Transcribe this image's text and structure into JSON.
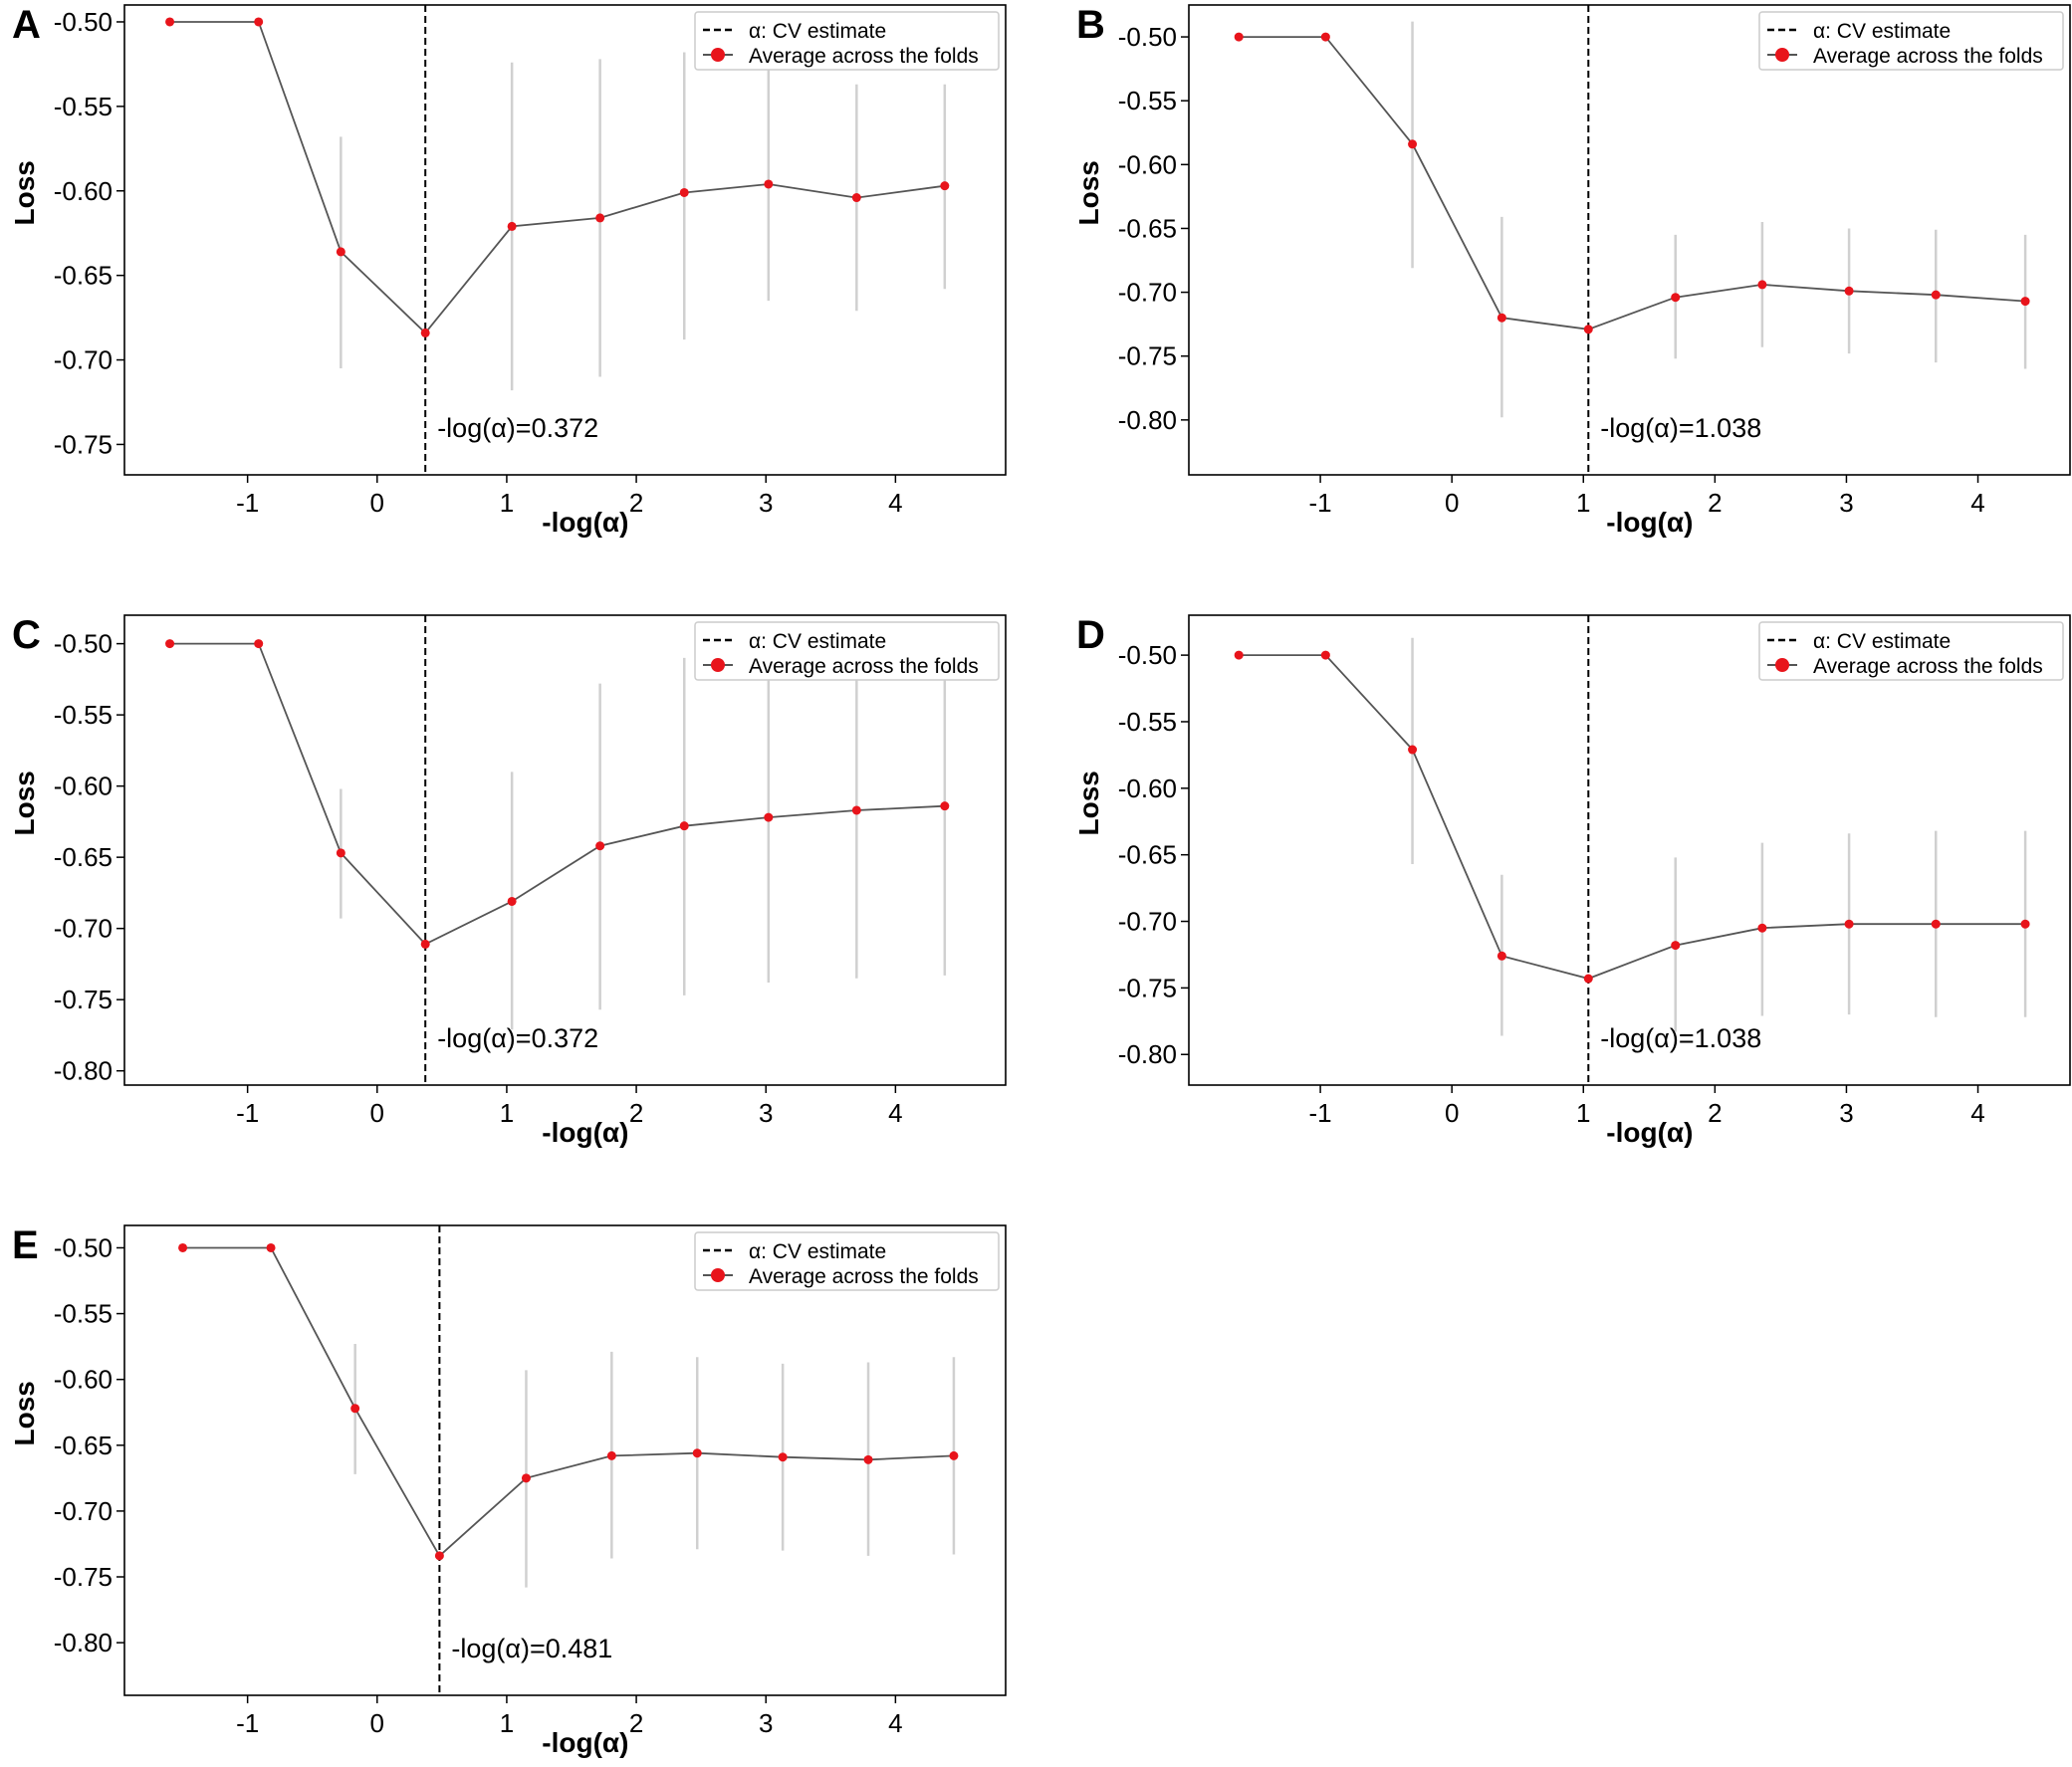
{
  "figure": {
    "description_labels": [
      "A",
      "B",
      "C",
      "D",
      "E"
    ]
  },
  "colors": {
    "marker": "#e8141b",
    "line": "#555555",
    "errorbar": "#d0d0d0",
    "cv_line": "#000000",
    "axis": "#000000"
  },
  "chart_data": [
    {
      "type": "line",
      "panel": "A",
      "xlabel": "-log(α)",
      "ylabel": "Loss",
      "xticks": [
        -1,
        0,
        1,
        2,
        3,
        4
      ],
      "yticks": [
        "-0.50",
        "-0.55",
        "-0.60",
        "-0.65",
        "-0.70",
        "-0.75"
      ],
      "xlim": [
        -1.95,
        4.85
      ],
      "ylim": [
        -0.768,
        -0.49
      ],
      "legend": [
        "α: CV estimate",
        "Average across the folds"
      ],
      "legend_loc": "top-right",
      "cv_x": 0.372,
      "annotation": "-log(α)=0.372",
      "series": {
        "name": "Average across the folds",
        "x": [
          -1.6,
          -0.915,
          -0.28,
          0.372,
          1.04,
          1.72,
          2.37,
          3.02,
          3.7,
          4.38
        ],
        "y": [
          -0.5,
          -0.5,
          -0.636,
          -0.684,
          -0.621,
          -0.616,
          -0.601,
          -0.596,
          -0.604,
          -0.597
        ],
        "err_low": [
          null,
          null,
          -0.705,
          null,
          -0.718,
          -0.71,
          -0.688,
          -0.665,
          -0.671,
          -0.658
        ],
        "err_high": [
          null,
          null,
          -0.568,
          null,
          -0.524,
          -0.522,
          -0.518,
          -0.527,
          -0.537,
          -0.537
        ]
      }
    },
    {
      "type": "line",
      "panel": "B",
      "xlabel": "-log(α)",
      "ylabel": "Loss",
      "xticks": [
        -1,
        0,
        1,
        2,
        3,
        4
      ],
      "yticks": [
        "-0.50",
        "-0.55",
        "-0.60",
        "-0.65",
        "-0.70",
        "-0.75",
        "-0.80"
      ],
      "xlim": [
        -2.0,
        4.7
      ],
      "ylim": [
        -0.843,
        -0.475
      ],
      "legend": [
        "α: CV estimate",
        "Average across the folds"
      ],
      "legend_loc": "top-right",
      "cv_x": 1.038,
      "annotation": "-log(α)=1.038",
      "series": {
        "name": "Average across the folds",
        "x": [
          -1.62,
          -0.96,
          -0.3,
          0.38,
          1.038,
          1.7,
          2.36,
          3.02,
          3.68,
          4.36
        ],
        "y": [
          -0.5,
          -0.5,
          -0.584,
          -0.72,
          -0.729,
          -0.704,
          -0.694,
          -0.699,
          -0.702,
          -0.707
        ],
        "err_low": [
          null,
          null,
          -0.681,
          -0.798,
          null,
          -0.752,
          -0.743,
          -0.748,
          -0.755,
          -0.76
        ],
        "err_high": [
          null,
          null,
          -0.488,
          -0.641,
          null,
          -0.655,
          -0.645,
          -0.65,
          -0.651,
          -0.655
        ]
      }
    },
    {
      "type": "line",
      "panel": "C",
      "xlabel": "-log(α)",
      "ylabel": "Loss",
      "xticks": [
        -1,
        0,
        1,
        2,
        3,
        4
      ],
      "yticks": [
        "-0.50",
        "-0.55",
        "-0.60",
        "-0.65",
        "-0.70",
        "-0.75",
        "-0.80"
      ],
      "xlim": [
        -1.95,
        4.85
      ],
      "ylim": [
        -0.81,
        -0.48
      ],
      "legend": [
        "α: CV estimate",
        "Average across the folds"
      ],
      "legend_loc": "top-right",
      "cv_x": 0.372,
      "annotation": "-log(α)=0.372",
      "series": {
        "name": "Average across the folds",
        "x": [
          -1.6,
          -0.915,
          -0.28,
          0.372,
          1.04,
          1.72,
          2.37,
          3.02,
          3.7,
          4.38
        ],
        "y": [
          -0.5,
          -0.5,
          -0.647,
          -0.711,
          -0.681,
          -0.642,
          -0.628,
          -0.622,
          -0.617,
          -0.614
        ],
        "err_low": [
          null,
          null,
          -0.693,
          null,
          -0.771,
          -0.757,
          -0.747,
          -0.738,
          -0.735,
          -0.733
        ],
        "err_high": [
          null,
          null,
          -0.602,
          null,
          -0.59,
          -0.528,
          -0.51,
          -0.505,
          -0.5,
          -0.496
        ]
      }
    },
    {
      "type": "line",
      "panel": "D",
      "xlabel": "-log(α)",
      "ylabel": "Loss",
      "xticks": [
        -1,
        0,
        1,
        2,
        3,
        4
      ],
      "yticks": [
        "-0.50",
        "-0.55",
        "-0.60",
        "-0.65",
        "-0.70",
        "-0.75",
        "-0.80"
      ],
      "xlim": [
        -2.0,
        4.7
      ],
      "ylim": [
        -0.823,
        -0.47
      ],
      "legend": [
        "α: CV estimate",
        "Average across the folds"
      ],
      "legend_loc": "top-right",
      "cv_x": 1.038,
      "annotation": "-log(α)=1.038",
      "series": {
        "name": "Average across the folds",
        "x": [
          -1.62,
          -0.96,
          -0.3,
          0.38,
          1.038,
          1.7,
          2.36,
          3.02,
          3.68,
          4.36
        ],
        "y": [
          -0.5,
          -0.5,
          -0.571,
          -0.726,
          -0.743,
          -0.718,
          -0.705,
          -0.702,
          -0.702,
          -0.702
        ],
        "err_low": [
          null,
          null,
          -0.657,
          -0.786,
          null,
          -0.783,
          -0.771,
          -0.77,
          -0.772,
          -0.772
        ],
        "err_high": [
          null,
          null,
          -0.487,
          -0.665,
          null,
          -0.652,
          -0.641,
          -0.634,
          -0.632,
          -0.632
        ]
      }
    },
    {
      "type": "line",
      "panel": "E",
      "xlabel": "-log(α)",
      "ylabel": "Loss",
      "xticks": [
        -1,
        0,
        1,
        2,
        3,
        4
      ],
      "yticks": [
        "-0.50",
        "-0.55",
        "-0.60",
        "-0.65",
        "-0.70",
        "-0.75",
        "-0.80"
      ],
      "xlim": [
        -1.95,
        4.85
      ],
      "ylim": [
        -0.84,
        -0.483
      ],
      "legend": [
        "α: CV estimate",
        "Average across the folds"
      ],
      "legend_loc": "top-right",
      "cv_x": 0.481,
      "annotation": "-log(α)=0.481",
      "series": {
        "name": "Average across the folds",
        "x": [
          -1.5,
          -0.82,
          -0.17,
          0.481,
          1.15,
          1.81,
          2.47,
          3.13,
          3.79,
          4.45
        ],
        "y": [
          -0.5,
          -0.5,
          -0.622,
          -0.734,
          -0.675,
          -0.658,
          -0.656,
          -0.659,
          -0.661,
          -0.658
        ],
        "err_low": [
          null,
          null,
          -0.672,
          null,
          -0.758,
          -0.736,
          -0.729,
          -0.73,
          -0.734,
          -0.733
        ],
        "err_high": [
          null,
          null,
          -0.573,
          null,
          -0.593,
          -0.579,
          -0.583,
          -0.588,
          -0.587,
          -0.583
        ]
      }
    }
  ]
}
